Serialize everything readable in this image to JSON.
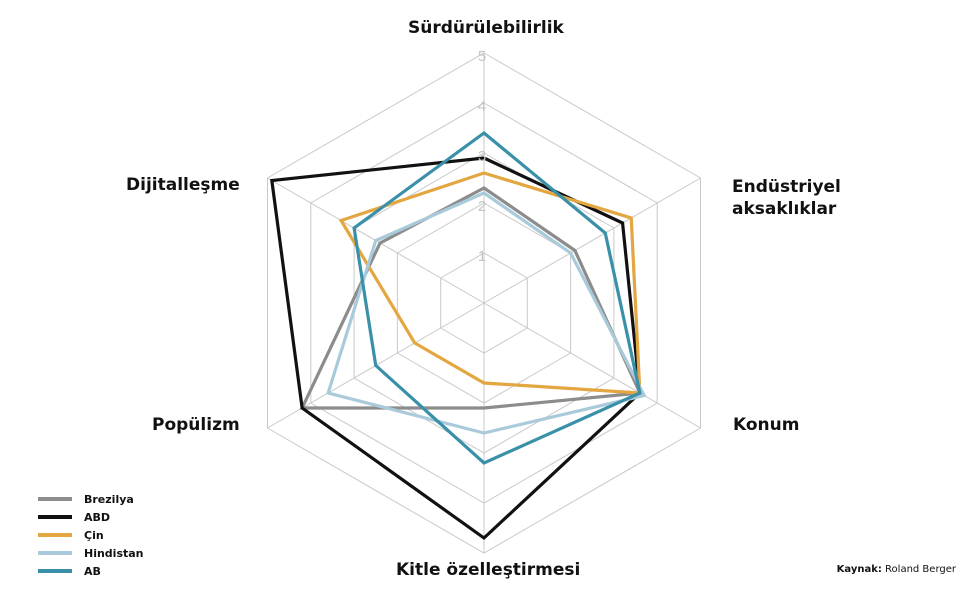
{
  "chart_data": {
    "type": "radar",
    "axes": [
      "Sürdürülebilirlik",
      "Endüstriyel\naksaklıklar",
      "Konum",
      "Kitle özelleştirmesi",
      "Popülizm",
      "Dijitalleşme"
    ],
    "scale_ticks": [
      "1",
      "2",
      "3",
      "4",
      "5"
    ],
    "range": [
      0,
      5
    ],
    "series": [
      {
        "name": "Brezilya",
        "color": "#8c8c8c",
        "values": [
          2.3,
          2.1,
          3.6,
          2.1,
          4.2,
          2.4
        ]
      },
      {
        "name": "ABD",
        "color": "#111111",
        "values": [
          2.9,
          3.2,
          3.6,
          4.7,
          4.2,
          4.9
        ]
      },
      {
        "name": "Çin",
        "color": "#e3a640",
        "values": [
          2.6,
          3.4,
          3.6,
          1.6,
          1.6,
          3.3
        ]
      },
      {
        "name": "Hindistan",
        "color": "#a9cadb",
        "values": [
          2.2,
          2.0,
          3.7,
          2.6,
          3.6,
          2.5
        ]
      },
      {
        "name": "AB",
        "color": "#3a90a8",
        "values": [
          3.4,
          2.8,
          3.6,
          3.2,
          2.5,
          3.0
        ]
      }
    ]
  },
  "source": {
    "label": "Kaynak:",
    "value": "Roland Berger"
  }
}
